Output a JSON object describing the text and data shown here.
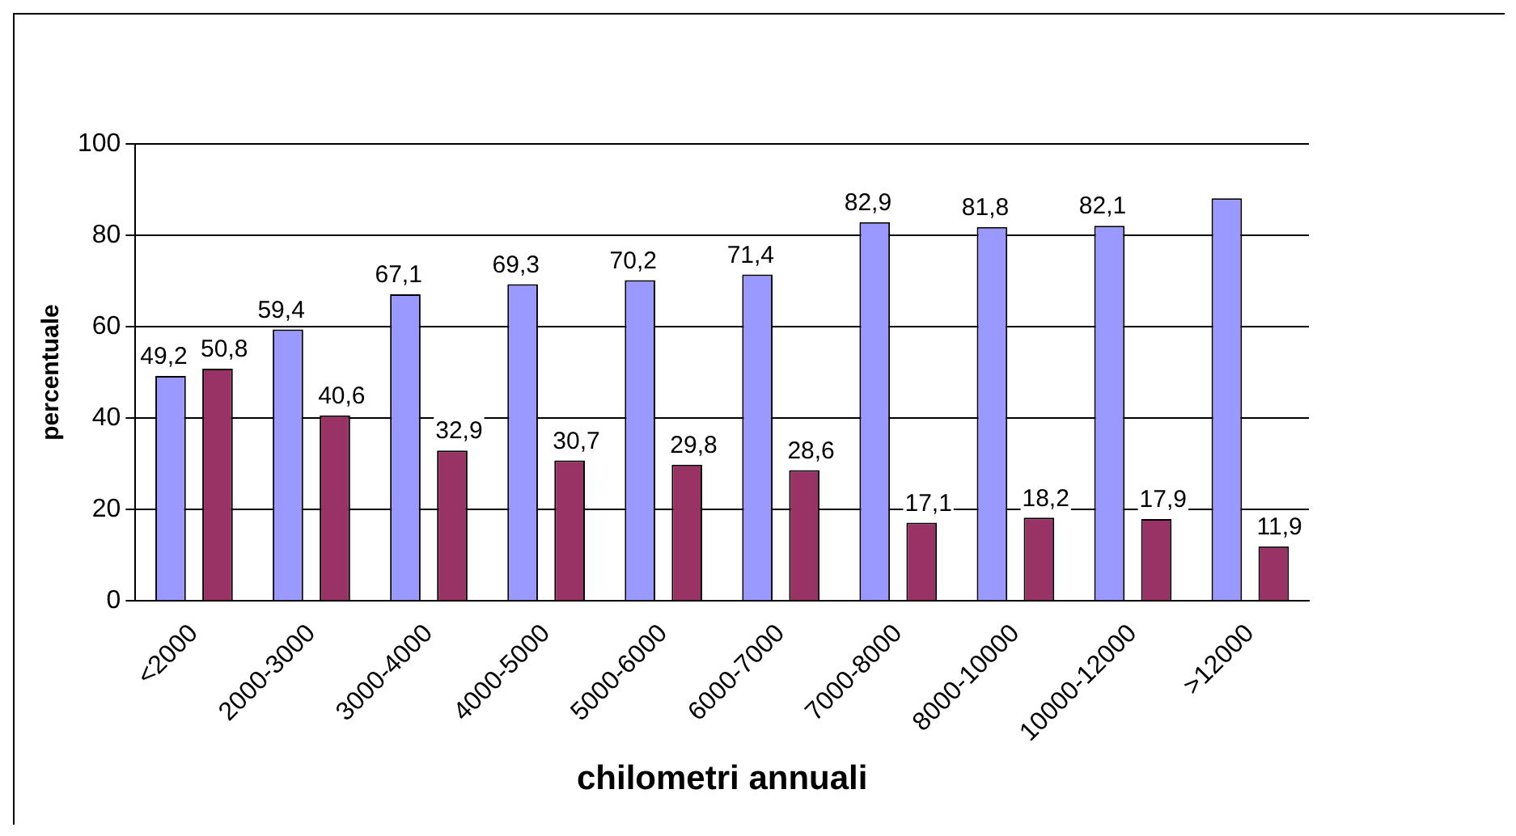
{
  "chart_data": {
    "type": "bar",
    "xlabel": "chilometri annuali",
    "ylabel": "percentuale",
    "categories": [
      "<2000",
      "2000-3000",
      "3000-4000",
      "4000-5000",
      "5000-6000",
      "6000-7000",
      "7000-8000",
      "8000-10000",
      "10000-12000",
      ">12000"
    ],
    "series": [
      {
        "color": "#9999ff",
        "values": [
          49.2,
          59.4,
          67.1,
          69.3,
          70.2,
          71.4,
          82.9,
          81.8,
          82.1,
          88.1
        ],
        "value_labels": [
          "49,2",
          "59,4",
          "67,1",
          "69,3",
          "70,2",
          "71,4",
          "82,9",
          "81,8",
          "82,1",
          null
        ]
      },
      {
        "color": "#993366",
        "values": [
          50.8,
          40.6,
          32.9,
          30.7,
          29.8,
          28.6,
          17.1,
          18.2,
          17.9,
          11.9
        ],
        "value_labels": [
          "50,8",
          "40,6",
          "32,9",
          "30,7",
          "29,8",
          "28,6",
          "17,1",
          "18,2",
          "17,9",
          "11,9"
        ]
      }
    ],
    "ylim": [
      0,
      100
    ],
    "yticks": [
      0,
      20,
      40,
      60,
      80,
      100
    ],
    "grid": "y",
    "legend": false
  }
}
